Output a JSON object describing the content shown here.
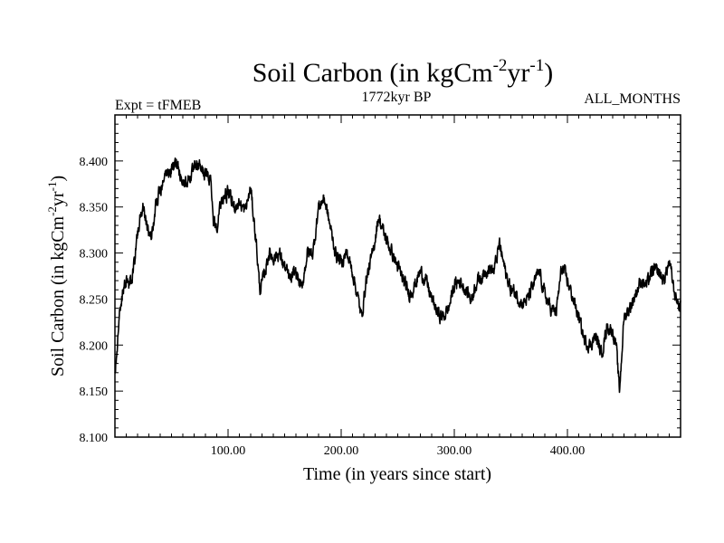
{
  "chart_data": {
    "type": "line",
    "title": {
      "main": "Soil Carbon (in kgCm",
      "sup1": "-2",
      "mid": "yr",
      "sup2": "-1",
      "end": ")"
    },
    "subtitle_left": "Expt = tFMEB",
    "subtitle_center": "1772kyr BP",
    "subtitle_right": "ALL_MONTHS",
    "xlabel": "Time (in years since start)",
    "ylabel": {
      "main": "Soil Carbon (in kgCm",
      "sup1": "-2",
      "mid": "yr",
      "sup2": "-1",
      "end": ")"
    },
    "xlim": [
      0,
      500
    ],
    "ylim": [
      8.1,
      8.45
    ],
    "x_ticks": [
      {
        "value": 100,
        "label": "100.00"
      },
      {
        "value": 200,
        "label": "200.00"
      },
      {
        "value": 300,
        "label": "300.00"
      },
      {
        "value": 400,
        "label": "400.00"
      }
    ],
    "y_ticks": [
      {
        "value": 8.1,
        "label": "8.100"
      },
      {
        "value": 8.15,
        "label": "8.150"
      },
      {
        "value": 8.2,
        "label": "8.200"
      },
      {
        "value": 8.25,
        "label": "8.250"
      },
      {
        "value": 8.3,
        "label": "8.300"
      },
      {
        "value": 8.35,
        "label": "8.350"
      },
      {
        "value": 8.4,
        "label": "8.400"
      }
    ],
    "series": [
      {
        "name": "Soil Carbon",
        "x": [
          0,
          2,
          4,
          6,
          8,
          10,
          12,
          14,
          16,
          18,
          20,
          22,
          25,
          28,
          32,
          36,
          40,
          45,
          50,
          55,
          60,
          65,
          70,
          75,
          80,
          85,
          87,
          90,
          95,
          100,
          105,
          110,
          115,
          120,
          125,
          128,
          132,
          136,
          140,
          145,
          150,
          155,
          160,
          165,
          170,
          175,
          180,
          185,
          190,
          195,
          200,
          205,
          210,
          215,
          218,
          222,
          228,
          233,
          238,
          245,
          250,
          255,
          260,
          265,
          270,
          275,
          280,
          285,
          290,
          295,
          300,
          305,
          310,
          315,
          320,
          325,
          330,
          335,
          340,
          345,
          350,
          355,
          360,
          365,
          370,
          375,
          380,
          385,
          390,
          395,
          400,
          405,
          410,
          415,
          420,
          425,
          430,
          435,
          440,
          443,
          446,
          450,
          455,
          460,
          465,
          470,
          475,
          480,
          485,
          490,
          495,
          500
        ],
        "values": [
          8.17,
          8.2,
          8.23,
          8.25,
          8.26,
          8.27,
          8.265,
          8.27,
          8.28,
          8.3,
          8.32,
          8.34,
          8.35,
          8.33,
          8.32,
          8.35,
          8.37,
          8.385,
          8.39,
          8.4,
          8.375,
          8.38,
          8.39,
          8.395,
          8.385,
          8.38,
          8.335,
          8.33,
          8.36,
          8.365,
          8.35,
          8.355,
          8.345,
          8.37,
          8.31,
          8.26,
          8.275,
          8.3,
          8.295,
          8.3,
          8.285,
          8.27,
          8.28,
          8.26,
          8.3,
          8.3,
          8.35,
          8.36,
          8.33,
          8.3,
          8.29,
          8.3,
          8.28,
          8.25,
          8.23,
          8.27,
          8.3,
          8.34,
          8.32,
          8.3,
          8.285,
          8.27,
          8.255,
          8.265,
          8.28,
          8.27,
          8.25,
          8.235,
          8.23,
          8.24,
          8.265,
          8.27,
          8.26,
          8.25,
          8.27,
          8.275,
          8.285,
          8.28,
          8.31,
          8.28,
          8.26,
          8.255,
          8.245,
          8.25,
          8.265,
          8.28,
          8.255,
          8.24,
          8.235,
          8.285,
          8.27,
          8.25,
          8.23,
          8.205,
          8.2,
          8.21,
          8.19,
          8.22,
          8.215,
          8.2,
          8.15,
          8.23,
          8.24,
          8.255,
          8.27,
          8.265,
          8.28,
          8.28,
          8.27,
          8.29,
          8.255,
          8.24
        ]
      }
    ]
  },
  "style": {
    "line_color": "#000000",
    "axis_color": "#000000",
    "background": "#ffffff"
  }
}
